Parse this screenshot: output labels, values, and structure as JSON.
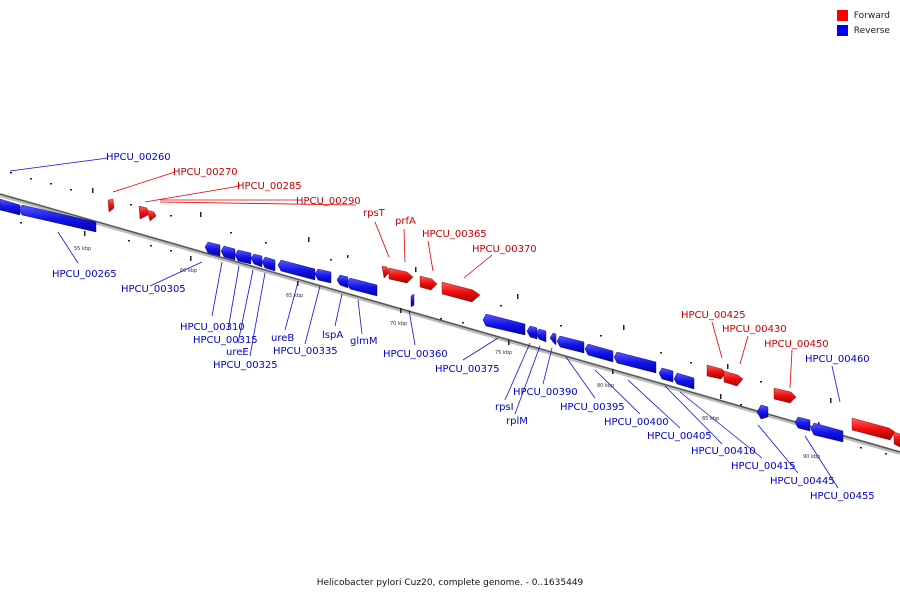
{
  "legend": [
    {
      "label": "Forward",
      "color": "#ff0000"
    },
    {
      "label": "Reverse",
      "color": "#0000ff"
    }
  ],
  "caption": "Helicobacter pylori Cuz20, complete genome. - 0..1635449",
  "scale_labels": [
    "55 kbp",
    "60 kbp",
    "65 kbp",
    "70 kbp",
    "75 kbp",
    "80 kbp",
    "85 kbp",
    "90 kbp"
  ],
  "gene_labels": [
    "HPCU_00260",
    "HPCU_00270",
    "HPCU_00285",
    "HPCU_00290",
    "rpsT",
    "prfA",
    "HPCU_00365",
    "HPCU_00370",
    "HPCU_00265",
    "HPCU_00305",
    "HPCU_00310",
    "HPCU_00315",
    "ureE",
    "HPCU_00325",
    "ureB",
    "HPCU_00335",
    "lspA",
    "glmM",
    "HPCU_00360",
    "HPCU_00375",
    "rpsI",
    "rplM",
    "HPCU_00390",
    "HPCU_00395",
    "HPCU_00400",
    "HPCU_00405",
    "HPCU_00410",
    "HPCU_00415",
    "HPCU_00425",
    "HPCU_00430",
    "HPCU_00450",
    "HPCU_00445",
    "HPCU_00455",
    "HPCU_00460"
  ]
}
